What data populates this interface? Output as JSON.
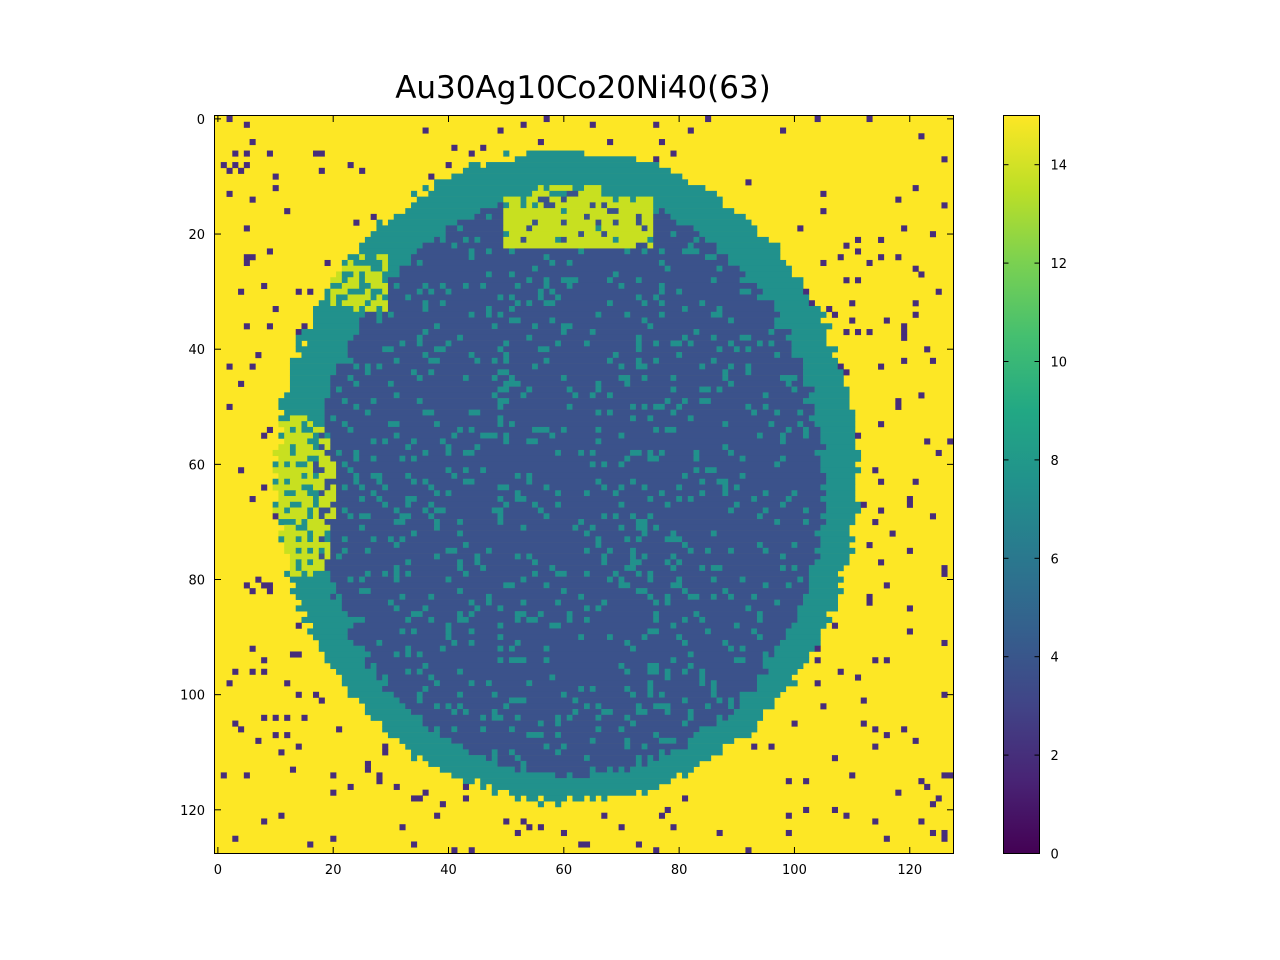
{
  "chart_data": {
    "type": "heatmap",
    "title": "Au30Ag10Co20Ni40(63)",
    "xlabel": "",
    "ylabel": "",
    "grid_size": [
      128,
      128
    ],
    "xlim": [
      -0.5,
      127.5
    ],
    "ylim": [
      127.5,
      -0.5
    ],
    "x_ticks": [
      0,
      20,
      40,
      60,
      80,
      100,
      120
    ],
    "y_ticks": [
      0,
      20,
      40,
      60,
      80,
      100,
      120
    ],
    "colorbar": {
      "range": [
        0,
        15
      ],
      "ticks": [
        0,
        2,
        4,
        6,
        8,
        10,
        12,
        14
      ],
      "colormap": "viridis"
    },
    "legend": "colorbar-right",
    "grid": false,
    "regions": {
      "background": {
        "value": 15,
        "color": "#fde725"
      },
      "shell": {
        "value": 7,
        "color": "#21918c",
        "center": [
          60.5,
          62
        ],
        "radii": [
          50.5,
          56.5
        ]
      },
      "core": {
        "value": 4,
        "color": "#3b528b",
        "center": [
          61,
          63.5
        ],
        "radii": [
          44,
          50.5
        ]
      },
      "islands": {
        "value": 14,
        "color": "#c8e020"
      },
      "sparse_defects": {
        "value": 3,
        "color": "#472d7b"
      }
    }
  }
}
